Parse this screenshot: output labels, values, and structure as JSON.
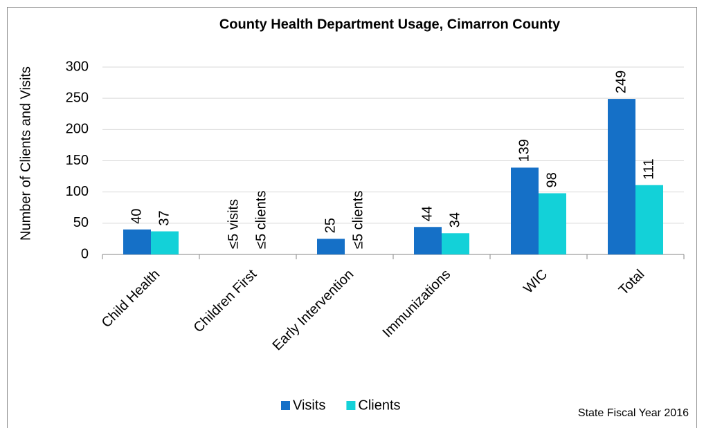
{
  "chart_data": {
    "type": "bar",
    "title": "County Health Department Usage, Cimarron County",
    "y_label": "Number of Clients and Visits",
    "note": "State Fiscal Year 2016",
    "categories": [
      "Child Health",
      "Children First",
      "Early Intervention",
      "Immunizations",
      "WIC",
      "Total"
    ],
    "series": [
      {
        "name": "Visits",
        "color": "#1570c7",
        "values": [
          40,
          null,
          25,
          44,
          139,
          249
        ],
        "value_labels": [
          "40",
          "≤5 visits",
          "25",
          "44",
          "139",
          "249"
        ]
      },
      {
        "name": "Clients",
        "color": "#13d1d8",
        "values": [
          37,
          null,
          null,
          34,
          98,
          111
        ],
        "value_labels": [
          "37",
          "≤5 clients",
          "≤5 clients",
          "34",
          "98",
          "111"
        ]
      }
    ],
    "ylim": [
      0,
      300
    ],
    "yticks": [
      0,
      50,
      100,
      150,
      200,
      250,
      300
    ],
    "grid": true,
    "legend": "bottom"
  }
}
